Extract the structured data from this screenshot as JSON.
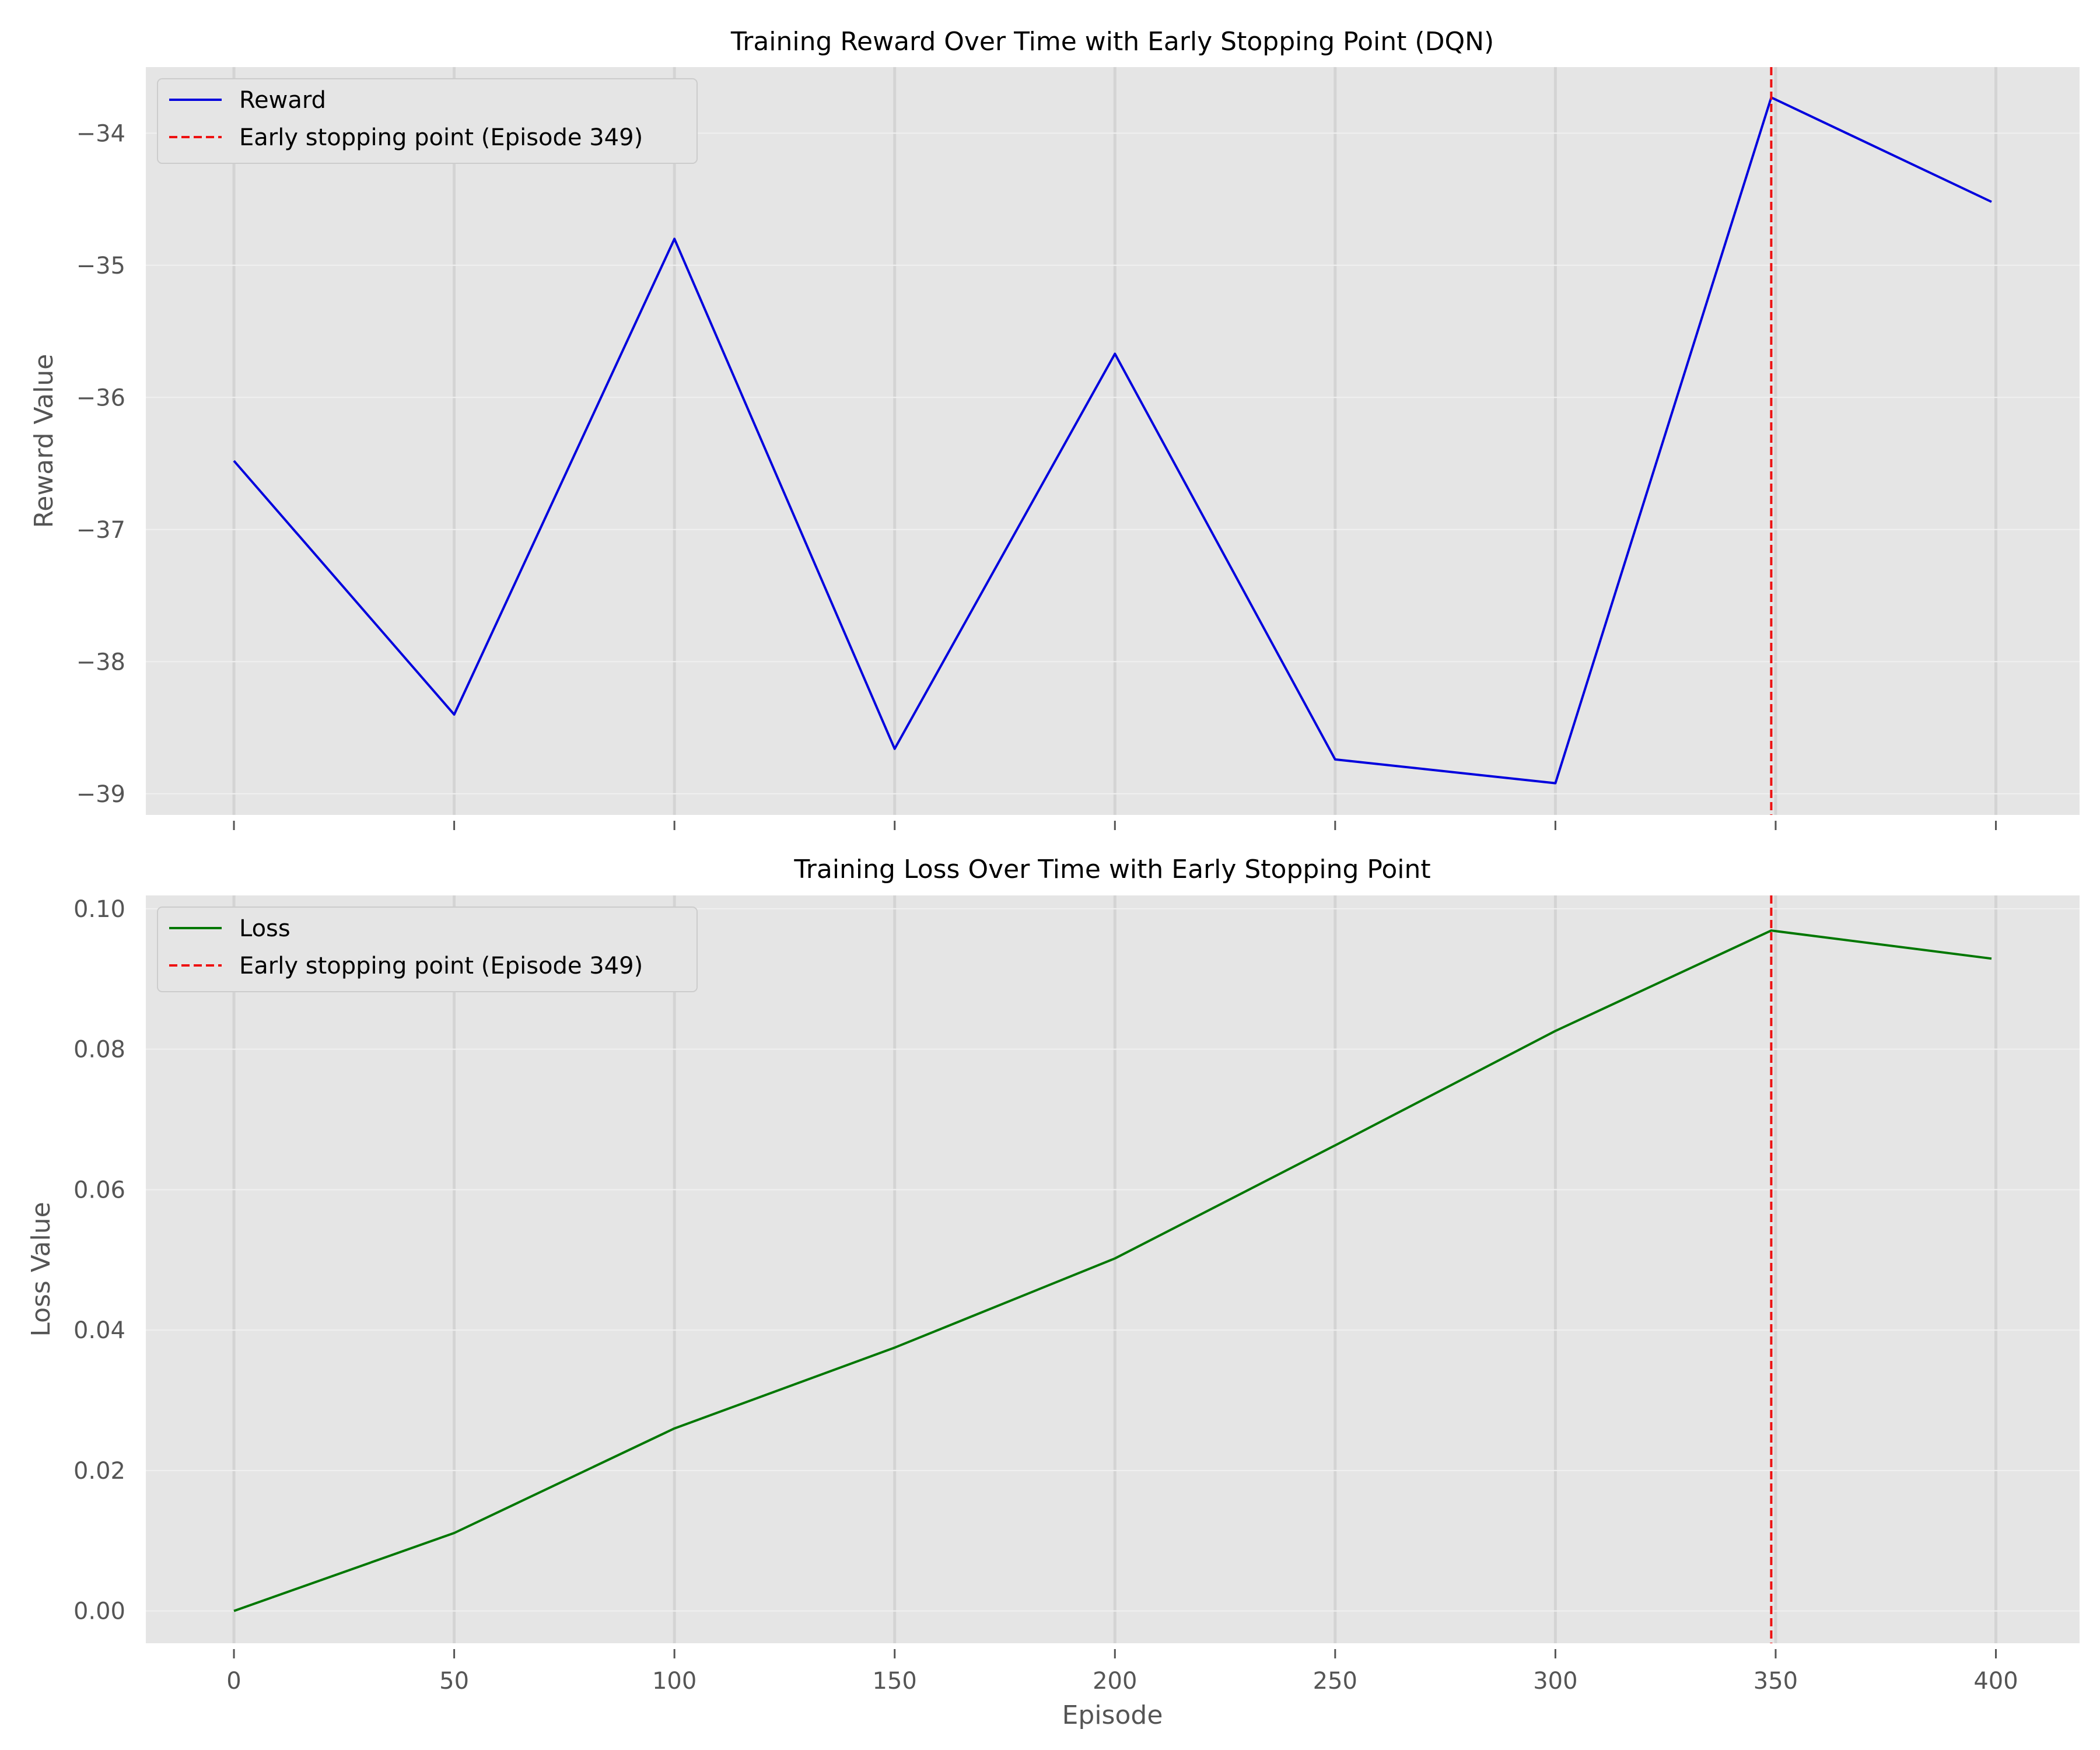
{
  "chart_data": [
    {
      "type": "line",
      "title": "Training Reward Over Time with Early Stopping Point (DQN)",
      "xlabel": "",
      "ylabel": "Reward Value",
      "x": [
        0,
        50,
        100,
        150,
        200,
        250,
        300,
        349,
        399
      ],
      "x_ticks": [
        0,
        50,
        100,
        150,
        200,
        250,
        300,
        350,
        400
      ],
      "x_tick_labels_visible": false,
      "y_ticks": [
        -39,
        -38,
        -37,
        -36,
        -35,
        -34
      ],
      "y_tick_labels": [
        "−39",
        "−38",
        "−37",
        "−36",
        "−35",
        "−34"
      ],
      "xlim": [
        -20,
        419
      ],
      "ylim": [
        -39.16,
        -33.5
      ],
      "grid": true,
      "legend_placement": "upper-left",
      "series": [
        {
          "name": "Reward",
          "color": "#0000dd",
          "style": "solid",
          "values": [
            -36.48,
            -38.4,
            -34.8,
            -38.66,
            -35.67,
            -38.74,
            -38.92,
            -33.73,
            -34.52
          ]
        }
      ],
      "vlines": [
        {
          "name": "Early stopping point (Episode 349)",
          "x": 349,
          "color": "#ee1111",
          "style": "dashed"
        }
      ]
    },
    {
      "type": "line",
      "title": "Training Loss Over Time with Early Stopping Point",
      "xlabel": "Episode",
      "ylabel": "Loss Value",
      "x": [
        0,
        50,
        100,
        150,
        200,
        250,
        300,
        349,
        399
      ],
      "x_ticks": [
        0,
        50,
        100,
        150,
        200,
        250,
        300,
        350,
        400
      ],
      "x_tick_labels": [
        "0",
        "50",
        "100",
        "150",
        "200",
        "250",
        "300",
        "350",
        "400"
      ],
      "y_ticks": [
        0.0,
        0.02,
        0.04,
        0.06,
        0.08,
        0.1
      ],
      "y_tick_labels": [
        "0.00",
        "0.02",
        "0.04",
        "0.06",
        "0.08",
        "0.10"
      ],
      "xlim": [
        -20,
        419
      ],
      "ylim": [
        -0.0046,
        0.1019
      ],
      "grid": true,
      "legend_placement": "upper-left",
      "series": [
        {
          "name": "Loss",
          "color": "#007700",
          "style": "solid",
          "values": [
            0.0,
            0.0111,
            0.026,
            0.0375,
            0.0502,
            0.0663,
            0.0826,
            0.0969,
            0.0929
          ]
        }
      ],
      "vlines": [
        {
          "name": "Early stopping point (Episode 349)",
          "x": 349,
          "color": "#ee1111",
          "style": "dashed"
        }
      ]
    }
  ]
}
